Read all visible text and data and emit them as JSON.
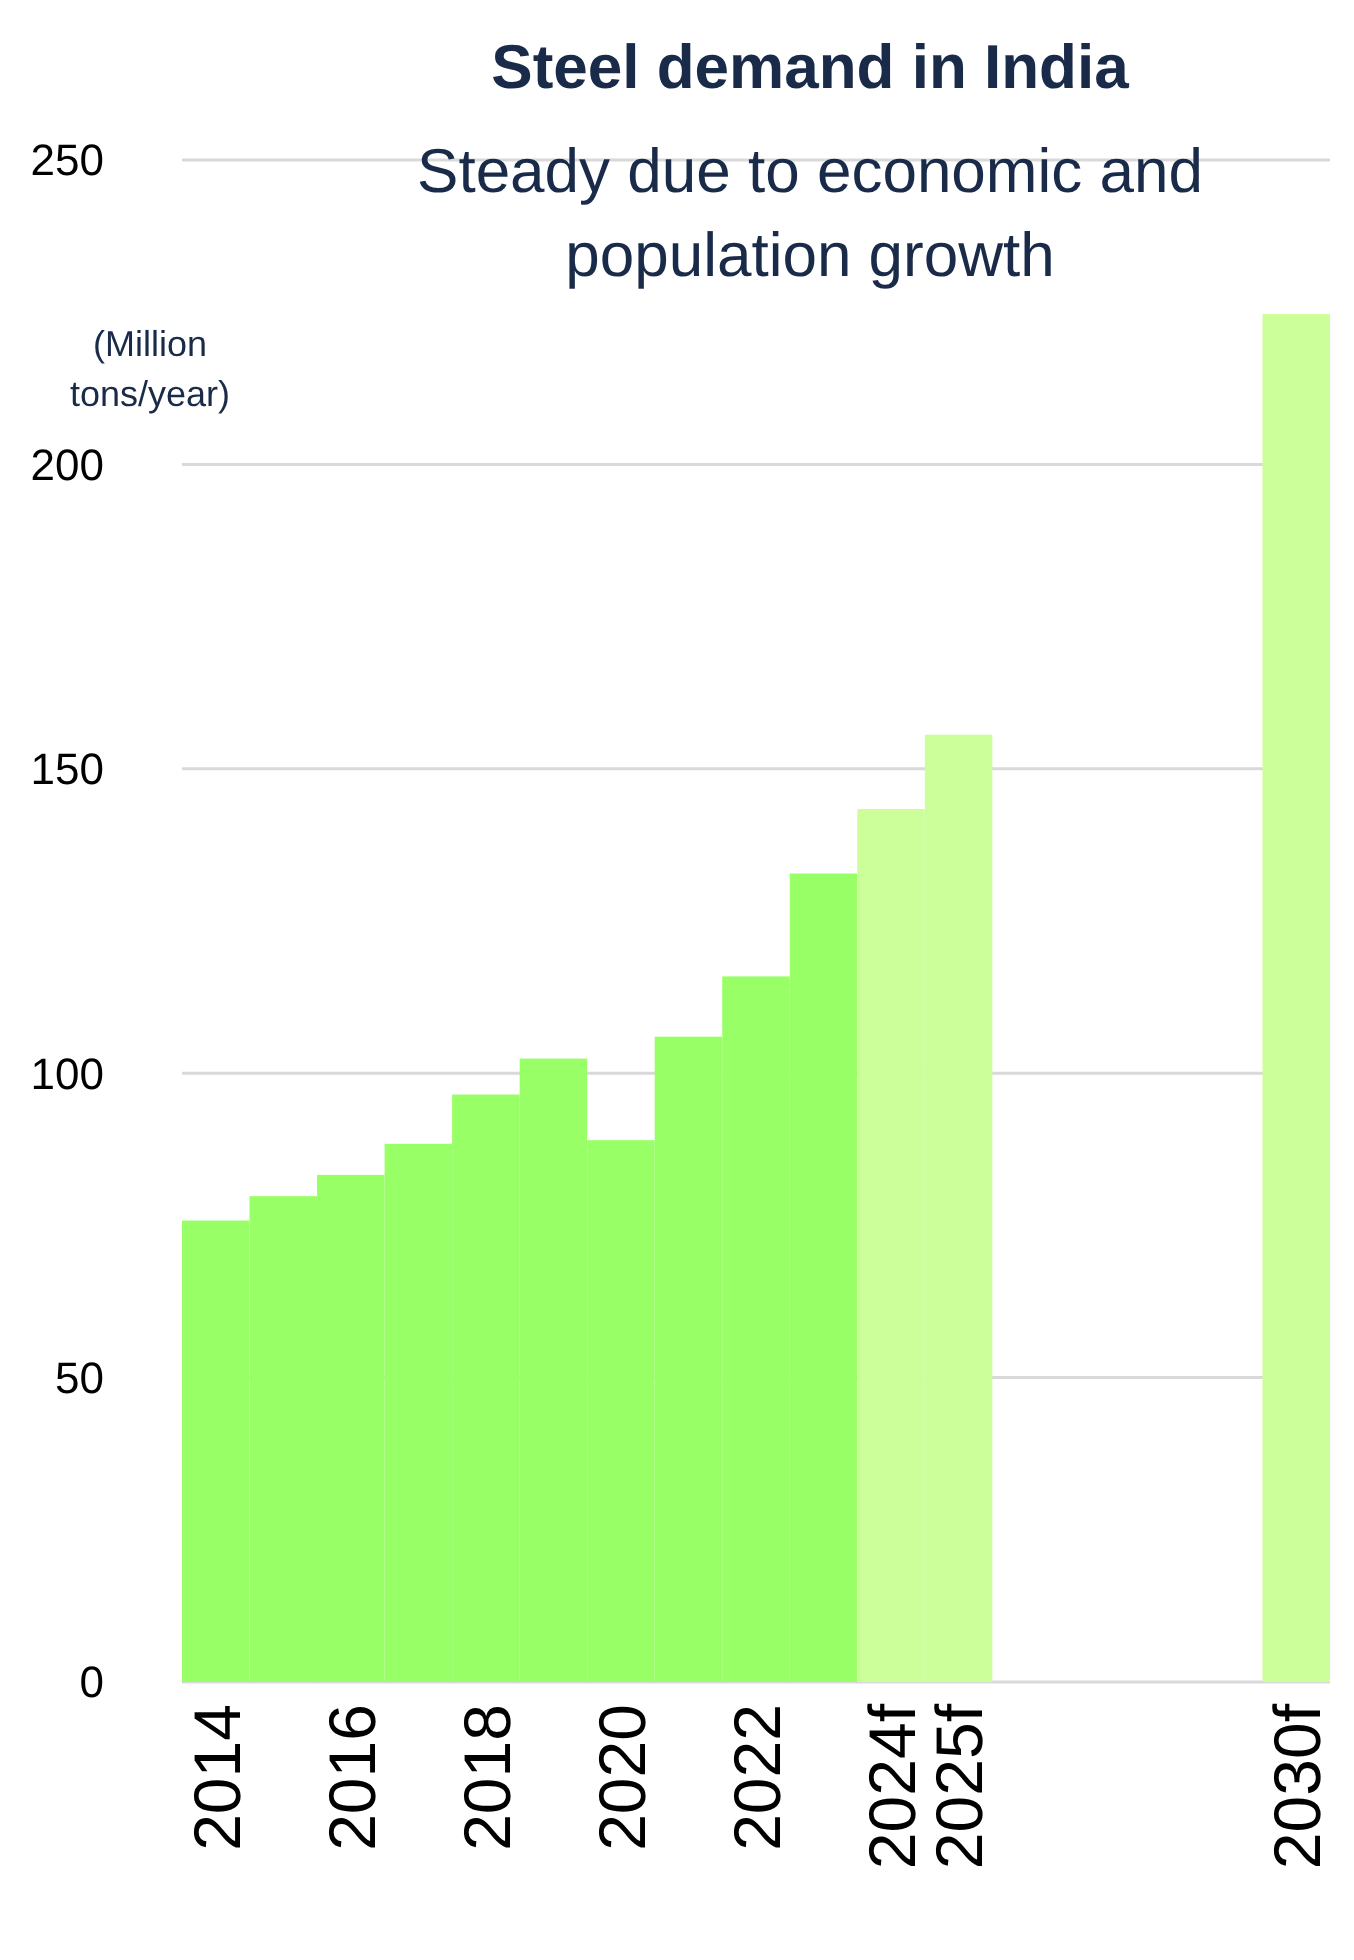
{
  "chart_data": {
    "type": "bar",
    "title": "Steel demand in India",
    "subtitle": "Steady due to economic and population growth",
    "ylabel": "(Million tons/year)",
    "categories": [
      "2014",
      null,
      "2016",
      null,
      "2018",
      null,
      "2020",
      null,
      "2022",
      null,
      "2024f",
      "2025f",
      null,
      null,
      null,
      null,
      "2030f"
    ],
    "values": [
      75.8,
      79.8,
      83.3,
      88.4,
      96.5,
      102.4,
      89.0,
      106.0,
      115.9,
      132.8,
      143.4,
      155.6,
      null,
      null,
      null,
      null,
      224.7
    ],
    "colors": [
      "#99ff66",
      "#99ff66",
      "#99ff66",
      "#99ff66",
      "#99ff66",
      "#99ff66",
      "#99ff66",
      "#99ff66",
      "#99ff66",
      "#99ff66",
      "#ccff99",
      "#ccff99",
      null,
      null,
      null,
      null,
      "#ccff99"
    ],
    "ylim": [
      0,
      250
    ],
    "yticks": [
      0,
      50,
      100,
      150,
      200,
      250
    ],
    "grid": "y"
  }
}
